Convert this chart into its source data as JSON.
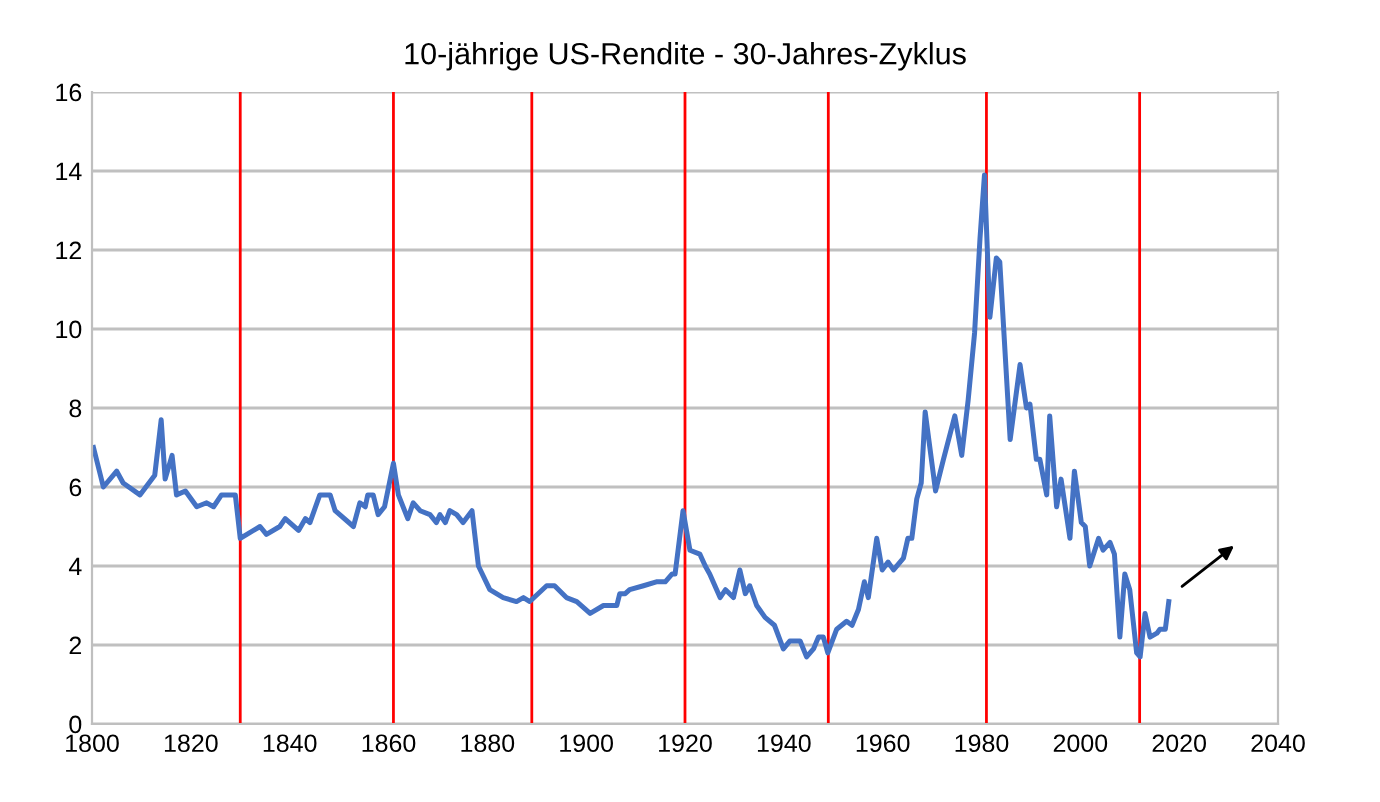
{
  "chart_data": {
    "type": "line",
    "title": "10-jährige US-Rendite - 30-Jahres-Zyklus",
    "series": [
      {
        "color": "#4472c4",
        "x": [
          1800.3,
          1802.3,
          1805,
          1806.3,
          1809.7,
          1812.7,
          1814,
          1814.8,
          1816.2,
          1817.1,
          1818.9,
          1821.2,
          1823.2,
          1824.6,
          1826.2,
          1829,
          1830,
          1834,
          1835.3,
          1838,
          1839.1,
          1841.8,
          1843.2,
          1844.1,
          1846.1,
          1848.2,
          1849.2,
          1852.9,
          1854.2,
          1855.3,
          1855.8,
          1856.9,
          1857.9,
          1859.2,
          1861,
          1862,
          1863.9,
          1865,
          1866.4,
          1868.4,
          1869.7,
          1870.4,
          1871.5,
          1872.4,
          1873.8,
          1875.1,
          1876.9,
          1878.2,
          1880.5,
          1883.2,
          1885.9,
          1887.3,
          1888.6,
          1892,
          1893.6,
          1896,
          1898.1,
          1900.8,
          1903.5,
          1906.2,
          1906.8,
          1907.9,
          1908.8,
          1911.6,
          1914.2,
          1916,
          1917.4,
          1918,
          1919.6,
          1921,
          1923,
          1924.1,
          1925,
          1927.1,
          1928.2,
          1929.8,
          1931.1,
          1932.2,
          1933.1,
          1934.5,
          1936.2,
          1938.1,
          1939.9,
          1941.2,
          1943.3,
          1944.6,
          1946,
          1947,
          1948,
          1948.9,
          1950.7,
          1952.7,
          1953.8,
          1955.1,
          1956.3,
          1957.1,
          1958.8,
          1959.9,
          1961.1,
          1962.2,
          1964.2,
          1965.1,
          1965.9,
          1966.9,
          1967.8,
          1968.6,
          1970.7,
          1972.3,
          1974.6,
          1976,
          1977.3,
          1978.6,
          1979.7,
          1980.6,
          1981.7,
          1983,
          1983.7,
          1985.8,
          1987.8,
          1989.1,
          1989.8,
          1991.1,
          1991.8,
          1993.2,
          1993.8,
          1995.2,
          1996.1,
          1997.9,
          1998.8,
          2000.2,
          2001,
          2001.9,
          2003.7,
          2004.6,
          2006,
          2006.9,
          2008,
          2009,
          2010,
          2011.4,
          2012.1,
          2013.1,
          2014.1,
          2015.5,
          2016.1,
          2017.2,
          2017.9
        ],
        "values": [
          7.0,
          6.0,
          6.4,
          6.1,
          5.8,
          6.3,
          7.7,
          6.2,
          6.8,
          5.8,
          5.9,
          5.5,
          5.6,
          5.5,
          5.8,
          5.8,
          4.7,
          5.0,
          4.8,
          5.0,
          5.2,
          4.9,
          5.2,
          5.1,
          5.8,
          5.8,
          5.4,
          5.0,
          5.6,
          5.5,
          5.8,
          5.8,
          5.3,
          5.5,
          6.6,
          5.8,
          5.2,
          5.6,
          5.4,
          5.3,
          5.1,
          5.3,
          5.1,
          5.4,
          5.3,
          5.1,
          5.4,
          4.0,
          3.4,
          3.2,
          3.1,
          3.2,
          3.1,
          3.5,
          3.5,
          3.2,
          3.1,
          2.8,
          3.0,
          3.0,
          3.3,
          3.3,
          3.4,
          3.5,
          3.6,
          3.6,
          3.8,
          3.8,
          5.4,
          4.4,
          4.3,
          4.0,
          3.8,
          3.2,
          3.4,
          3.2,
          3.9,
          3.3,
          3.5,
          3.0,
          2.7,
          2.5,
          1.9,
          2.1,
          2.1,
          1.7,
          1.9,
          2.2,
          2.2,
          1.8,
          2.4,
          2.6,
          2.5,
          2.9,
          3.6,
          3.2,
          4.7,
          3.9,
          4.1,
          3.9,
          4.2,
          4.7,
          4.7,
          5.7,
          6.1,
          7.9,
          5.9,
          6.7,
          7.8,
          6.8,
          8.2,
          9.9,
          12.3,
          13.9,
          10.3,
          11.8,
          11.7,
          7.2,
          9.1,
          8.0,
          8.1,
          6.7,
          6.7,
          5.8,
          7.8,
          5.5,
          6.2,
          4.7,
          6.4,
          5.1,
          5.0,
          4.0,
          4.7,
          4.4,
          4.6,
          4.3,
          2.2,
          3.8,
          3.4,
          1.8,
          1.7,
          2.8,
          2.2,
          2.3,
          2.4,
          2.4,
          3.1
        ]
      }
    ],
    "xlim": [
      1800,
      2040
    ],
    "xticks": [
      1800,
      1820,
      1840,
      1860,
      1880,
      1900,
      1920,
      1940,
      1960,
      1980,
      2000,
      2020,
      2040
    ],
    "ylim": [
      0,
      16
    ],
    "yticks": [
      0,
      2,
      4,
      6,
      8,
      10,
      12,
      14,
      16
    ],
    "grid": "y",
    "line_style": "solid",
    "marker": "none",
    "ref_lines": [
      {
        "axis": "x",
        "value": 1830,
        "color": "#ff0000"
      },
      {
        "axis": "x",
        "value": 1861,
        "color": "#ff0000"
      },
      {
        "axis": "x",
        "value": 1889,
        "color": "#ff0000"
      },
      {
        "axis": "x",
        "value": 1920,
        "color": "#ff0000"
      },
      {
        "axis": "x",
        "value": 1949,
        "color": "#ff0000"
      },
      {
        "axis": "x",
        "value": 1981,
        "color": "#ff0000"
      },
      {
        "axis": "x",
        "value": 2012,
        "color": "#ff0000"
      }
    ]
  }
}
